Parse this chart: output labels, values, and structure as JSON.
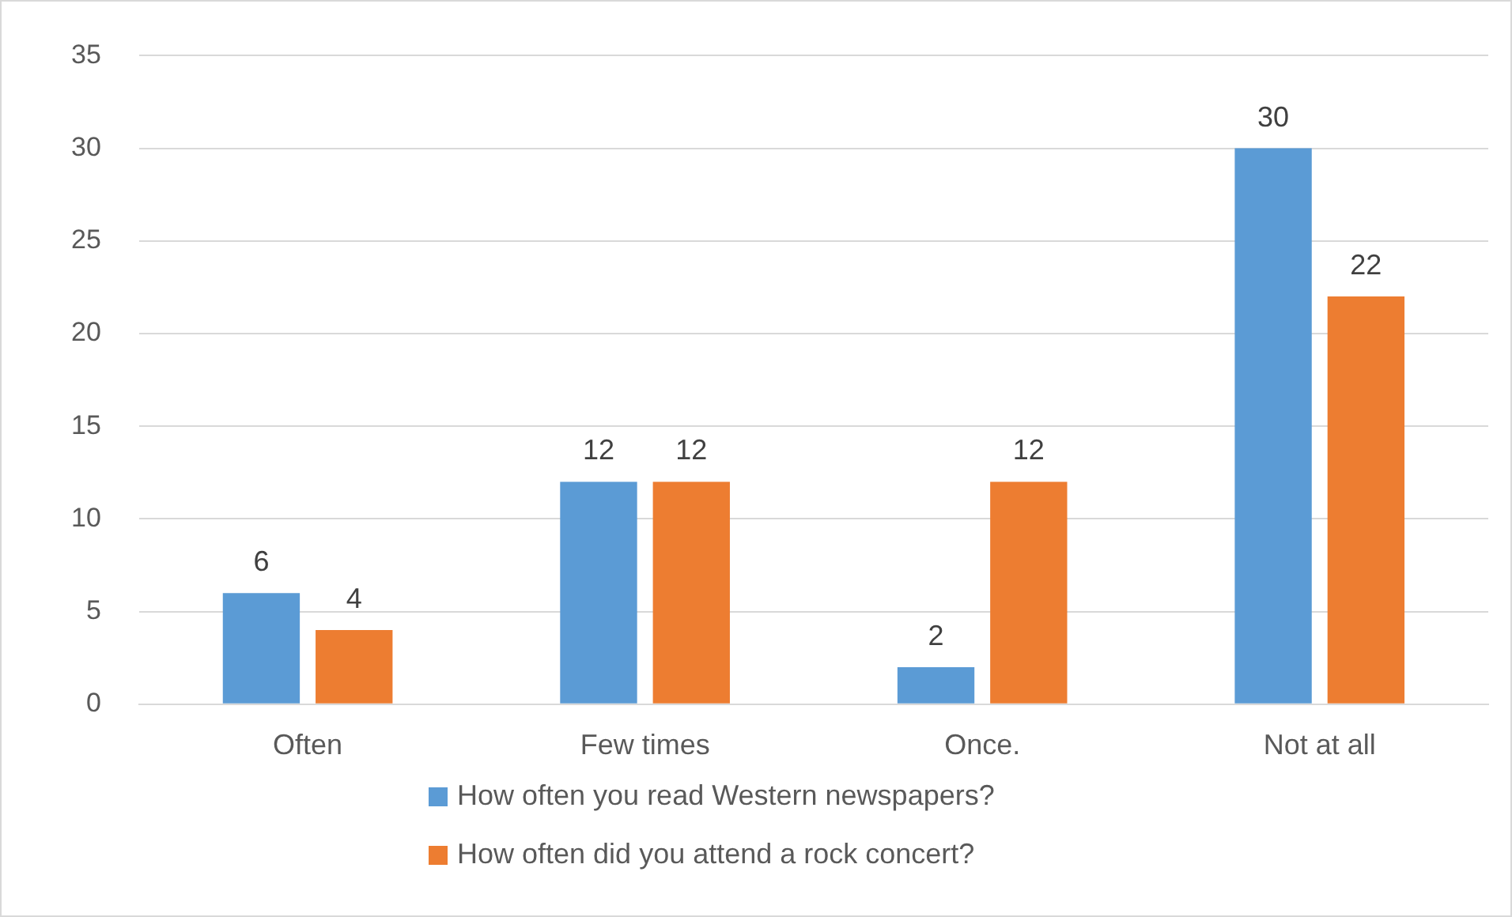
{
  "chart_data": {
    "type": "bar",
    "categories": [
      "Often",
      "Few times",
      "Once.",
      "Not at all"
    ],
    "series": [
      {
        "name": "How often you read Western newspapers?",
        "color": "#5b9bd5",
        "values": [
          6,
          12,
          2,
          30
        ]
      },
      {
        "name": "How often did you attend a rock concert?",
        "color": "#ed7d31",
        "values": [
          4,
          12,
          12,
          22
        ]
      }
    ],
    "ylim": [
      0,
      35
    ],
    "yticks": [
      0,
      5,
      10,
      15,
      20,
      25,
      30,
      35
    ],
    "grid": "y",
    "legend": "bottom",
    "data_labels": true
  }
}
